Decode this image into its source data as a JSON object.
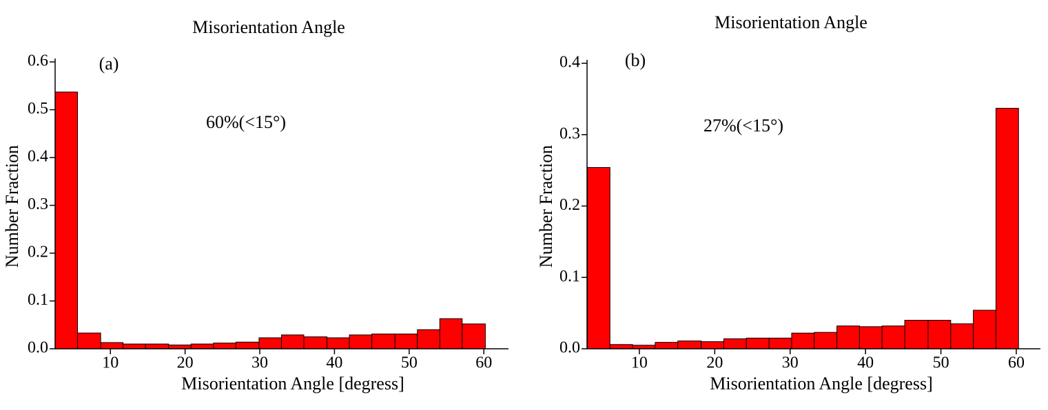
{
  "chart_data": [
    {
      "type": "histogram",
      "title": "Misorientation Angle",
      "panel": "(a)",
      "annotation": "60%(<15°)",
      "xlabel": "Misorientation Angle [degress]",
      "ylabel": "Number Fraction",
      "color": "#ff0000",
      "bins": [
        2.6,
        5.6,
        8.7,
        11.7,
        14.7,
        17.8,
        20.8,
        23.8,
        26.8,
        29.9,
        32.9,
        35.9,
        39.0,
        42.0,
        45.0,
        48.1,
        51.1,
        54.1,
        57.1,
        60.2
      ],
      "values": [
        0.537,
        0.033,
        0.013,
        0.01,
        0.01,
        0.008,
        0.01,
        0.012,
        0.014,
        0.023,
        0.029,
        0.025,
        0.023,
        0.029,
        0.031,
        0.031,
        0.04,
        0.063,
        0.052
      ],
      "xlim": [
        2.6,
        63.3
      ],
      "xticks": [
        10,
        20,
        30,
        40,
        50,
        60
      ],
      "ylim": [
        0,
        0.6
      ],
      "yticks": [
        {
          "value": 0,
          "label": "0.0"
        },
        0.1,
        0.2,
        0.3,
        0.4,
        0.5,
        0.6
      ]
    },
    {
      "type": "histogram",
      "title": "Misorientation Angle",
      "panel": "(b)",
      "annotation": "27%(<15°)",
      "xlabel": "Misorientation Angle [degress]",
      "ylabel": "Number Fraction",
      "color": "#ff0000",
      "bins": [
        3.1,
        6.1,
        9.1,
        12.1,
        15.1,
        18.2,
        21.2,
        24.2,
        27.2,
        30.2,
        33.2,
        36.2,
        39.2,
        42.2,
        45.2,
        48.3,
        51.3,
        54.3,
        57.3,
        60.3
      ],
      "values": [
        0.254,
        0.006,
        0.005,
        0.009,
        0.011,
        0.01,
        0.014,
        0.015,
        0.015,
        0.022,
        0.023,
        0.032,
        0.031,
        0.032,
        0.04,
        0.04,
        0.035,
        0.054,
        0.337
      ],
      "xlim": [
        3.06,
        63.2
      ],
      "xticks": [
        10,
        20,
        30,
        40,
        50,
        60
      ],
      "ylim": [
        0,
        0.4
      ],
      "yticks": [
        {
          "value": 0,
          "label": "0.0"
        },
        0.1,
        0.2,
        0.3,
        0.4
      ]
    }
  ]
}
